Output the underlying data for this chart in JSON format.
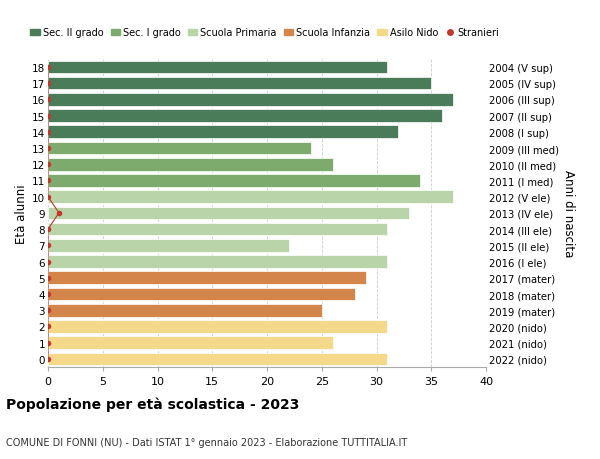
{
  "ages": [
    0,
    1,
    2,
    3,
    4,
    5,
    6,
    7,
    8,
    9,
    10,
    11,
    12,
    13,
    14,
    15,
    16,
    17,
    18
  ],
  "years": [
    "2022 (nido)",
    "2021 (nido)",
    "2020 (nido)",
    "2019 (mater)",
    "2018 (mater)",
    "2017 (mater)",
    "2016 (I ele)",
    "2015 (II ele)",
    "2014 (III ele)",
    "2013 (IV ele)",
    "2012 (V ele)",
    "2011 (I med)",
    "2010 (II med)",
    "2009 (III med)",
    "2008 (I sup)",
    "2007 (II sup)",
    "2006 (III sup)",
    "2005 (IV sup)",
    "2004 (V sup)"
  ],
  "values": [
    31,
    26,
    31,
    25,
    28,
    29,
    31,
    22,
    31,
    33,
    37,
    34,
    26,
    24,
    32,
    36,
    37,
    35,
    31
  ],
  "stranieri": [
    0,
    0,
    0,
    0,
    0,
    0,
    0,
    0,
    0,
    1,
    0,
    0,
    0,
    0,
    0,
    0,
    0,
    0,
    0
  ],
  "bar_colors": [
    "#f5d98a",
    "#f5d98a",
    "#f5d98a",
    "#d4854a",
    "#d4854a",
    "#d4854a",
    "#b8d4a8",
    "#b8d4a8",
    "#b8d4a8",
    "#b8d4a8",
    "#b8d4a8",
    "#7dab6e",
    "#7dab6e",
    "#7dab6e",
    "#4a7c59",
    "#4a7c59",
    "#4a7c59",
    "#4a7c59",
    "#4a7c59"
  ],
  "legend_labels": [
    "Sec. II grado",
    "Sec. I grado",
    "Scuola Primaria",
    "Scuola Infanzia",
    "Asilo Nido",
    "Stranieri"
  ],
  "legend_colors": [
    "#4a7c59",
    "#7dab6e",
    "#b8d4a8",
    "#d4854a",
    "#f5d98a",
    "#c0392b"
  ],
  "stranieri_color": "#c0392b",
  "title": "Popolazione per età scolastica - 2023",
  "subtitle": "COMUNE DI FONNI (NU) - Dati ISTAT 1° gennaio 2023 - Elaborazione TUTTITALIA.IT",
  "ylabel": "Età alunni",
  "ylabel2": "Anni di nascita",
  "xlim": [
    0,
    40
  ],
  "xticks": [
    0,
    5,
    10,
    15,
    20,
    25,
    30,
    35,
    40
  ],
  "bg_color": "#ffffff",
  "grid_color": "#cccccc"
}
